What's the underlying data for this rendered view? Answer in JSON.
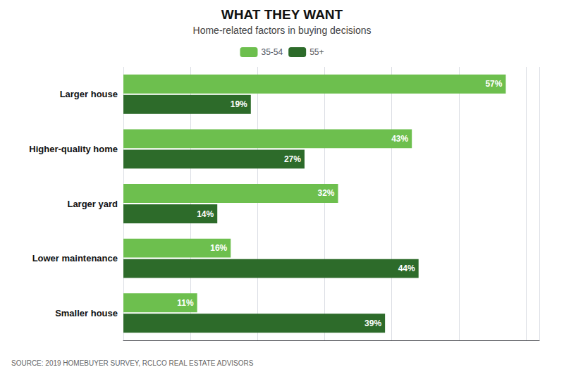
{
  "chart_data": {
    "type": "bar",
    "orientation": "horizontal",
    "title": "WHAT THEY WANT",
    "subtitle": "Home-related factors in buying decisions",
    "source": "SOURCE: 2019 HOMEBUYER SURVEY, RCLCO REAL ESTATE ADVISORS",
    "categories": [
      "Larger house",
      "Higher-quality home",
      "Larger yard",
      "Lower maintenance",
      "Smaller house"
    ],
    "series": [
      {
        "name": "35-54",
        "color": "#6dbf4e",
        "values": [
          57,
          43,
          32,
          16,
          11
        ],
        "value_labels": [
          "57%",
          "43%",
          "32%",
          "16%",
          "11%"
        ]
      },
      {
        "name": "55+",
        "color": "#2d6b2a",
        "values": [
          19,
          27,
          14,
          44,
          39
        ],
        "value_labels": [
          "19%",
          "27%",
          "14%",
          "44%",
          "39%"
        ]
      }
    ],
    "xlim": [
      0,
      62
    ],
    "xticks": [
      0,
      10,
      20,
      30,
      40,
      50,
      60
    ],
    "grid": true,
    "tick_labels": "y",
    "data_labels": true,
    "legend": "top"
  }
}
